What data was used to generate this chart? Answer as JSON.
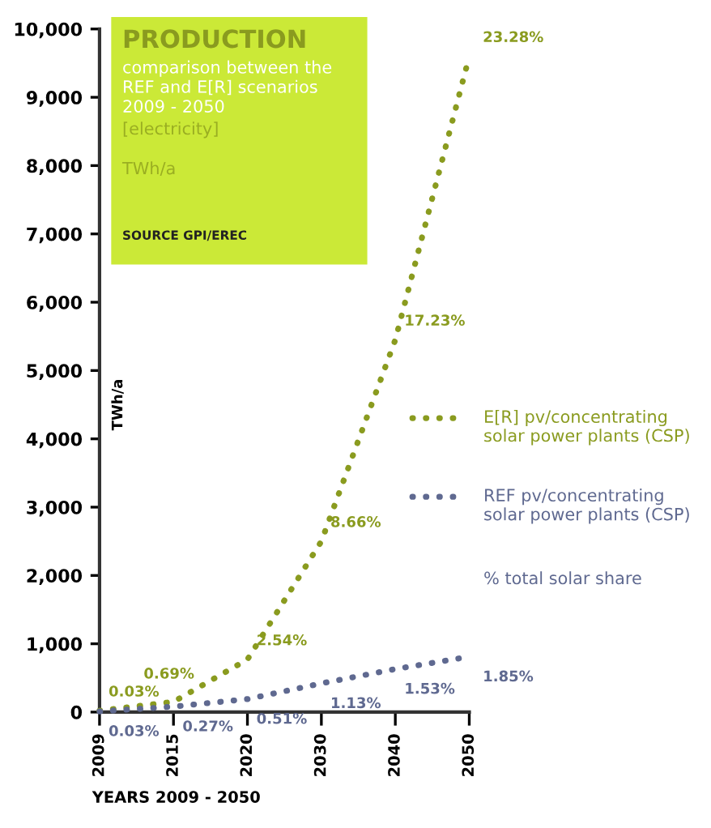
{
  "chart_data": {
    "type": "line",
    "title": "PRODUCTION",
    "subtitle": "comparison between the REF and E[R] scenarios 2009 - 2050",
    "annotations": [
      "[electricity]",
      "TWh/a",
      "SOURCE GPI/EREC",
      "% total solar share",
      {
        "text": "0.03%",
        "x": "2009",
        "y": 20
      },
      {
        "text": "0.69%",
        "x": "2015",
        "y": 150
      },
      {
        "text": "2.54%",
        "x": "2020",
        "y": 770
      },
      {
        "text": "8.66%",
        "x": "2030",
        "y": 2500
      },
      {
        "text": "17.23%",
        "x": "2040",
        "y": 5450
      },
      {
        "text": "23.28%",
        "x": "2050",
        "y": 9600
      },
      {
        "text": "0.03%",
        "x": "2009",
        "y": 10
      },
      {
        "text": "0.27%",
        "x": "2015",
        "y": 80
      },
      {
        "text": "0.51%",
        "x": "2020",
        "y": 190
      },
      {
        "text": "1.13%",
        "x": "2030",
        "y": 420
      },
      {
        "text": "1.53%",
        "x": "2040",
        "y": 630
      },
      {
        "text": "1.85%",
        "x": "2050",
        "y": 810
      }
    ],
    "xlabel": "YEARS 2009 - 2050",
    "ylabel": "TWh/a",
    "categories": [
      "2009",
      "2015",
      "2020",
      "2030",
      "2040",
      "2050"
    ],
    "series": [
      {
        "name": "E[R] pv/concentrating solar power plants (CSP)",
        "color": "#8a9b1f",
        "values": [
          20,
          150,
          770,
          2500,
          5450,
          9600
        ]
      },
      {
        "name": "REF pv/concentrating solar power plants (CSP)",
        "color": "#5f6990",
        "values": [
          10,
          80,
          190,
          420,
          630,
          810
        ]
      }
    ],
    "ylim": [
      0,
      10000
    ],
    "yticks": [
      0,
      {
        "value": 1000,
        "label": "1,000"
      },
      {
        "value": 2000,
        "label": "2,000"
      },
      {
        "value": 3000,
        "label": "3,000"
      },
      {
        "value": 4000,
        "label": "4,000"
      },
      {
        "value": 5000,
        "label": "5,000"
      },
      {
        "value": 6000,
        "label": "6,000"
      },
      {
        "value": 7000,
        "label": "7,000"
      },
      {
        "value": 8000,
        "label": "8,000"
      },
      {
        "value": 9000,
        "label": "9,000"
      },
      {
        "value": 10000,
        "label": "10,000"
      }
    ],
    "line_style": "dotted",
    "grid": false,
    "legend": "right"
  }
}
